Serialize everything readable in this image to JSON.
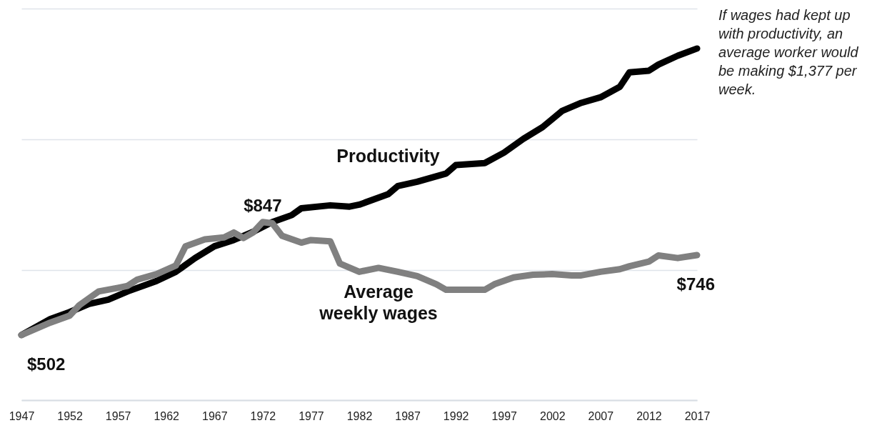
{
  "chart_data": {
    "type": "line",
    "annotations": [
      "If wages had kept up with productivity, an average worker would be making $1,377 per week."
    ],
    "xlim": [
      1947,
      2017
    ],
    "xticks": [
      1947,
      1952,
      1957,
      1962,
      1967,
      1972,
      1977,
      1982,
      1987,
      1992,
      1997,
      2002,
      2007,
      2012,
      2017
    ],
    "ylim": [
      303,
      1499
    ],
    "yticks": [
      {
        "value": 303,
        "label": null
      },
      {
        "value": 701,
        "label": null
      },
      {
        "value": 1100,
        "label": null
      },
      {
        "value": 1499,
        "label": null
      }
    ],
    "grid": "y",
    "tick_labels": "x",
    "series": [
      {
        "name": "Productivity",
        "color": "#000000",
        "x": [
          1947,
          1950,
          1952,
          1954,
          1956,
          1958,
          1961,
          1963,
          1965,
          1967,
          1969,
          1971,
          1973,
          1975,
          1976,
          1979,
          1981,
          1982,
          1985,
          1986,
          1988,
          1991,
          1992,
          1995,
          1997,
          1999,
          2001,
          2003,
          2005,
          2007,
          2009,
          2010,
          2012,
          2013,
          2015,
          2017
        ],
        "values": [
          502,
          551,
          572,
          597,
          610,
          635,
          667,
          695,
          737,
          773,
          792,
          817,
          847,
          868,
          889,
          898,
          894,
          900,
          932,
          957,
          970,
          995,
          1021,
          1027,
          1059,
          1101,
          1137,
          1186,
          1211,
          1228,
          1260,
          1304,
          1309,
          1328,
          1355,
          1377
        ]
      },
      {
        "name": "Average weekly wages",
        "color": "#808080",
        "x": [
          1947,
          1950,
          1952,
          1953,
          1955,
          1957,
          1958,
          1959,
          1961,
          1963,
          1964,
          1966,
          1968,
          1969,
          1970,
          1971,
          1972,
          1973,
          1974,
          1976,
          1977,
          1979,
          1980,
          1982,
          1984,
          1986,
          1988,
          1990,
          1991,
          1993,
          1995,
          1996,
          1998,
          2000,
          2002,
          2004,
          2005,
          2007,
          2009,
          2010,
          2012,
          2013,
          2015,
          2017
        ],
        "values": [
          502,
          540,
          561,
          593,
          635,
          646,
          652,
          671,
          688,
          714,
          773,
          794,
          800,
          815,
          798,
          815,
          847,
          843,
          805,
          784,
          792,
          788,
          720,
          695,
          707,
          695,
          682,
          657,
          640,
          640,
          640,
          657,
          678,
          686,
          688,
          684,
          684,
          695,
          703,
          712,
          726,
          745,
          737,
          746
        ],
        "value_labels": [
          "$502",
          null,
          null,
          null,
          null,
          null,
          null,
          null,
          null,
          null,
          null,
          null,
          null,
          null,
          null,
          null,
          "$847",
          null,
          null,
          null,
          null,
          null,
          null,
          null,
          null,
          null,
          null,
          null,
          null,
          null,
          null,
          null,
          null,
          null,
          null,
          null,
          null,
          null,
          null,
          null,
          null,
          null,
          null,
          "$746"
        ]
      }
    ]
  }
}
